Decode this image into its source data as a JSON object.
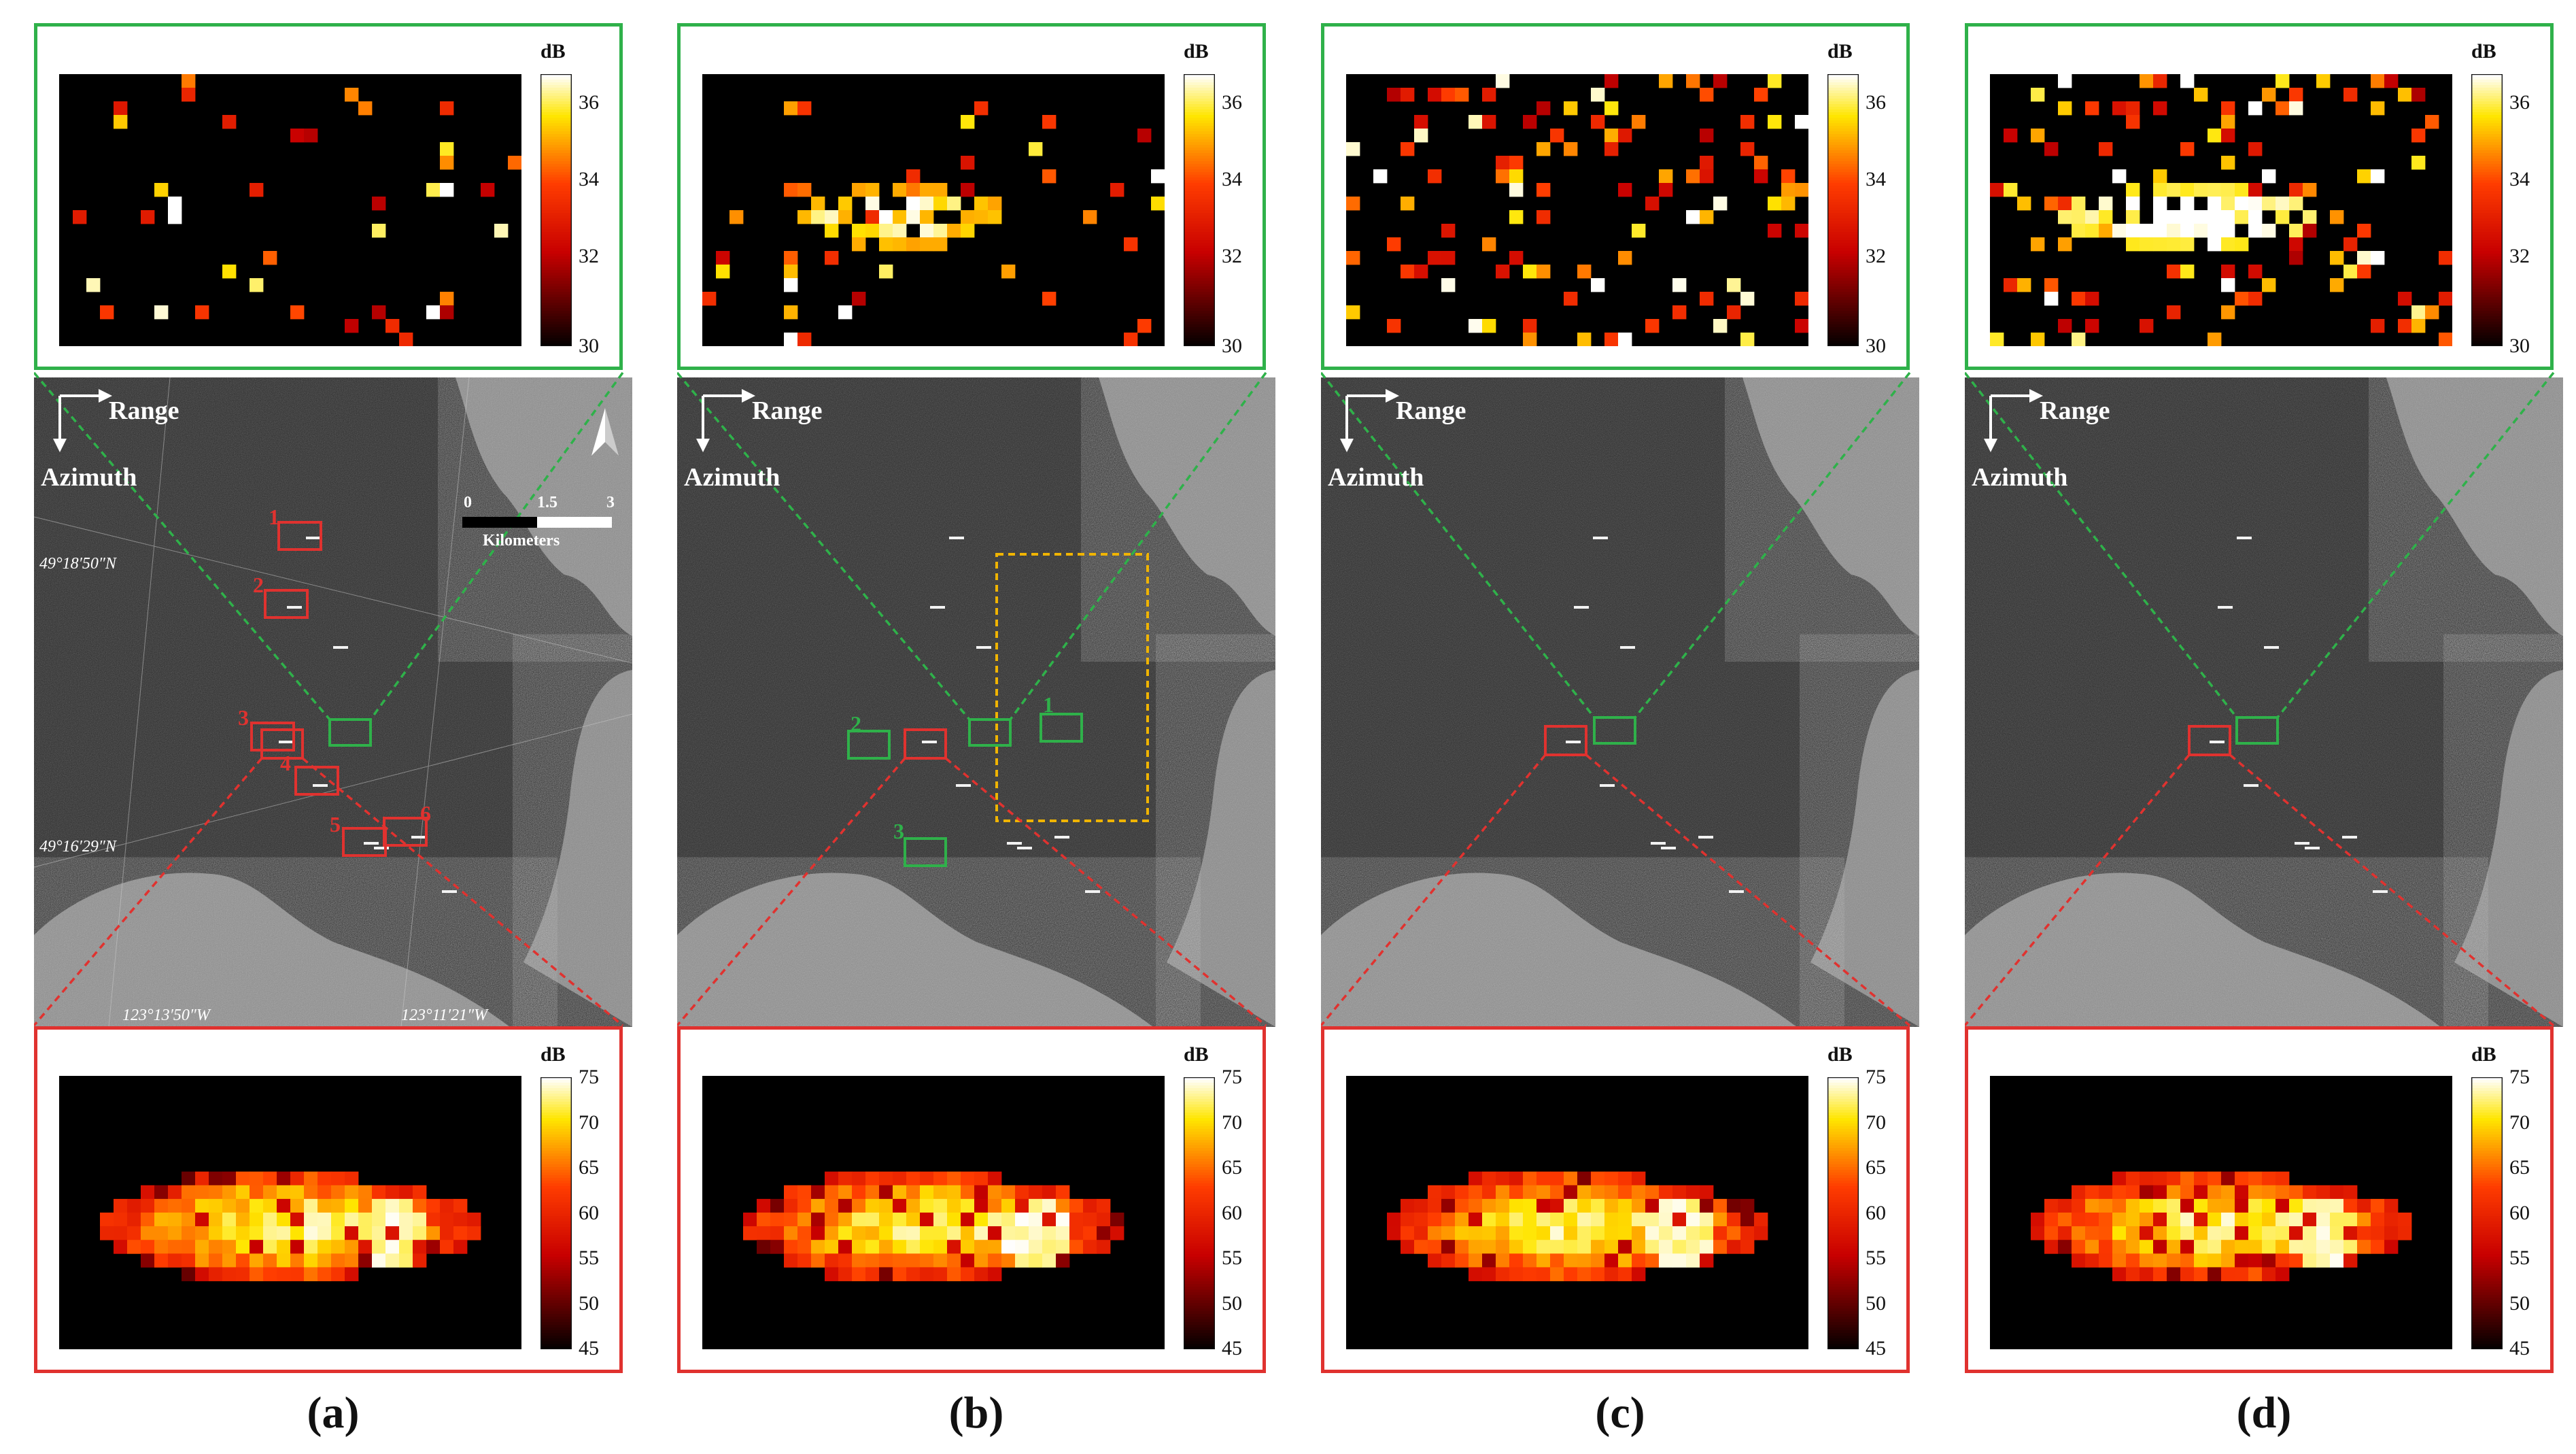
{
  "panels": [
    {
      "id": "a",
      "caption": "(a)",
      "top_scale": {
        "unit": "dB",
        "ticks": [
          "36",
          "34",
          "32",
          "30"
        ]
      },
      "bottom_scale": {
        "unit": "dB",
        "ticks": [
          "75",
          "70",
          "65",
          "60",
          "55",
          "50",
          "45"
        ]
      },
      "range_label": "Range",
      "azimuth_label": "Azimuth"
    },
    {
      "id": "b",
      "caption": "(b)",
      "top_scale": {
        "unit": "dB",
        "ticks": [
          "36",
          "34",
          "32",
          "30"
        ]
      },
      "bottom_scale": {
        "unit": "dB",
        "ticks": [
          "75",
          "70",
          "65",
          "60",
          "55",
          "50",
          "45"
        ]
      },
      "range_label": "Range",
      "azimuth_label": "Azimuth"
    },
    {
      "id": "c",
      "caption": "(c)",
      "top_scale": {
        "unit": "dB",
        "ticks": [
          "36",
          "34",
          "32",
          "30"
        ]
      },
      "bottom_scale": {
        "unit": "dB",
        "ticks": [
          "75",
          "70",
          "65",
          "60",
          "55",
          "50",
          "45"
        ]
      },
      "range_label": "Range",
      "azimuth_label": "Azimuth"
    },
    {
      "id": "d",
      "caption": "(d)",
      "top_scale": {
        "unit": "dB",
        "ticks": [
          "36",
          "34",
          "32",
          "30"
        ]
      },
      "bottom_scale": {
        "unit": "dB",
        "ticks": [
          "75",
          "70",
          "65",
          "60",
          "55",
          "50",
          "45"
        ]
      },
      "range_label": "Range",
      "azimuth_label": "Azimuth"
    }
  ],
  "panel_a": {
    "target_numbers": [
      "1",
      "2",
      "3",
      "4",
      "5",
      "6"
    ],
    "scale_bar": {
      "ticks": [
        "0",
        "1.5",
        "3"
      ],
      "unit": "Kilometers"
    },
    "coords": {
      "lat1": "49°18′50″N",
      "lat2": "49°16′29″N",
      "lon1": "123°13′50″W",
      "lon2": "123°11′21″W"
    }
  },
  "panel_b": {
    "clutter_numbers": [
      "1",
      "2",
      "3"
    ]
  },
  "colors": {
    "green_box": "#2fb14a",
    "red_box": "#e0322f",
    "yellow_box": "#f0b400"
  }
}
